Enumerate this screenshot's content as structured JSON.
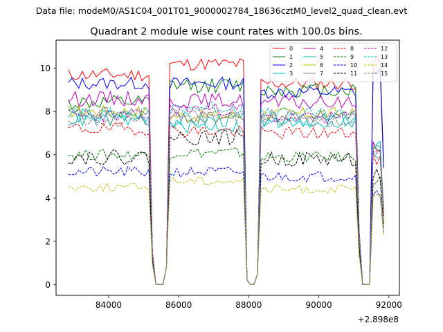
{
  "chart_data": {
    "type": "line",
    "suptitle": "Data file: modeM0/AS1C04_001T01_9000002784_18636cztM0_level2_quad_clean.evt",
    "title": "Quadrant 2 module wise count rates with 100.0s bins.",
    "xlabel": "",
    "ylabel": "",
    "x_offset_label": "+2.898e8",
    "xlim": [
      82500,
      92300
    ],
    "ylim": [
      -0.5,
      11.3
    ],
    "x_ticks": [
      84000,
      86000,
      88000,
      90000,
      92000
    ],
    "y_ticks": [
      0,
      2,
      4,
      6,
      8,
      10
    ],
    "x_tick_labels": [
      "84000",
      "86000",
      "88000",
      "90000",
      "92000"
    ],
    "y_tick_labels": [
      "0",
      "2",
      "4",
      "6",
      "8",
      "10"
    ],
    "grid": false,
    "legend_position": "top-right",
    "segments": [
      {
        "start": 82850,
        "end": 85150
      },
      {
        "start": 85750,
        "end": 87850
      },
      {
        "start": 88350,
        "end": 91050
      },
      {
        "start": 91550,
        "end": 91750
      }
    ],
    "gap_points": [
      [
        85150,
        "last"
      ],
      [
        85250,
        1.5
      ],
      [
        85350,
        0
      ],
      [
        85450,
        0
      ],
      [
        85550,
        0
      ],
      [
        85650,
        0.8
      ],
      [
        85750,
        "first"
      ],
      [
        87850,
        "last"
      ],
      [
        87950,
        0
      ],
      [
        88050,
        0
      ],
      [
        88150,
        0
      ],
      [
        88250,
        0.5
      ],
      [
        88350,
        "first"
      ],
      [
        91050,
        "last"
      ],
      [
        91150,
        2.5
      ],
      [
        91250,
        0
      ],
      [
        91350,
        0
      ],
      [
        91450,
        0
      ],
      [
        91550,
        0.1
      ]
    ],
    "series": [
      {
        "name": "0",
        "color": "#ff0000",
        "dash": "solid",
        "level": 9.6,
        "noise": 0.3,
        "seg": [
          9.7,
          10.2,
          9.3,
          10.3
        ]
      },
      {
        "name": "1",
        "color": "#008000",
        "dash": "solid",
        "level": 9.1,
        "noise": 0.35,
        "seg": [
          8.4,
          9.2,
          9.0,
          9.9
        ]
      },
      {
        "name": "2",
        "color": "#0000ff",
        "dash": "solid",
        "level": 9.2,
        "noise": 0.3,
        "seg": [
          9.3,
          9.3,
          8.9,
          9.8
        ]
      },
      {
        "name": "3",
        "color": "#00bfbf",
        "dash": "solid",
        "level": 7.8,
        "noise": 0.35,
        "seg": [
          7.8,
          7.6,
          7.6,
          6.3
        ]
      },
      {
        "name": "4",
        "color": "#bf00bf",
        "dash": "solid",
        "level": 8.5,
        "noise": 0.35,
        "seg": [
          8.6,
          8.5,
          8.4,
          6.5
        ]
      },
      {
        "name": "5",
        "color": "#00bfbf",
        "dash": "solid",
        "level": 7.6,
        "noise": 0.3,
        "seg": [
          7.6,
          7.3,
          7.5,
          6.0
        ]
      },
      {
        "name": "6",
        "color": "#bfbf00",
        "dash": "solid",
        "level": 8.0,
        "noise": 0.3,
        "seg": [
          8.0,
          7.8,
          7.9,
          6.2
        ]
      },
      {
        "name": "7",
        "color": "#808080",
        "dash": "solid",
        "level": 7.8,
        "noise": 0.3,
        "seg": [
          7.9,
          7.7,
          7.8,
          6.1
        ]
      },
      {
        "name": "8",
        "color": "#ff0000",
        "dash": "dashed",
        "level": 7.2,
        "noise": 0.3,
        "seg": [
          7.2,
          7.1,
          7.0,
          5.8
        ]
      },
      {
        "name": "9",
        "color": "#008000",
        "dash": "dashed",
        "level": 6.0,
        "noise": 0.25,
        "seg": [
          6.0,
          6.1,
          5.9,
          4.8
        ]
      },
      {
        "name": "10",
        "color": "#0000ff",
        "dash": "dashed",
        "level": 5.2,
        "noise": 0.25,
        "seg": [
          5.2,
          5.2,
          5.0,
          4.3
        ]
      },
      {
        "name": "11",
        "color": "#000000",
        "dash": "dashed",
        "level": 6.0,
        "noise": 0.35,
        "seg": [
          5.9,
          6.8,
          5.8,
          5.1
        ]
      },
      {
        "name": "12",
        "color": "#bf00bf",
        "dash": "dashed",
        "level": 7.7,
        "noise": 0.3,
        "seg": [
          7.8,
          8.1,
          7.7,
          6.3
        ]
      },
      {
        "name": "13",
        "color": "#00bfbf",
        "dash": "dashed",
        "level": 7.9,
        "noise": 0.3,
        "seg": [
          7.9,
          8.2,
          7.9,
          6.4
        ]
      },
      {
        "name": "14",
        "color": "#bfbf00",
        "dash": "dashed",
        "level": 4.5,
        "noise": 0.2,
        "seg": [
          4.5,
          4.8,
          4.4,
          4.1
        ]
      },
      {
        "name": "15",
        "color": "#808080",
        "dash": "dashed",
        "level": 7.6,
        "noise": 0.3,
        "seg": [
          7.6,
          7.8,
          7.6,
          6.2
        ]
      }
    ]
  }
}
